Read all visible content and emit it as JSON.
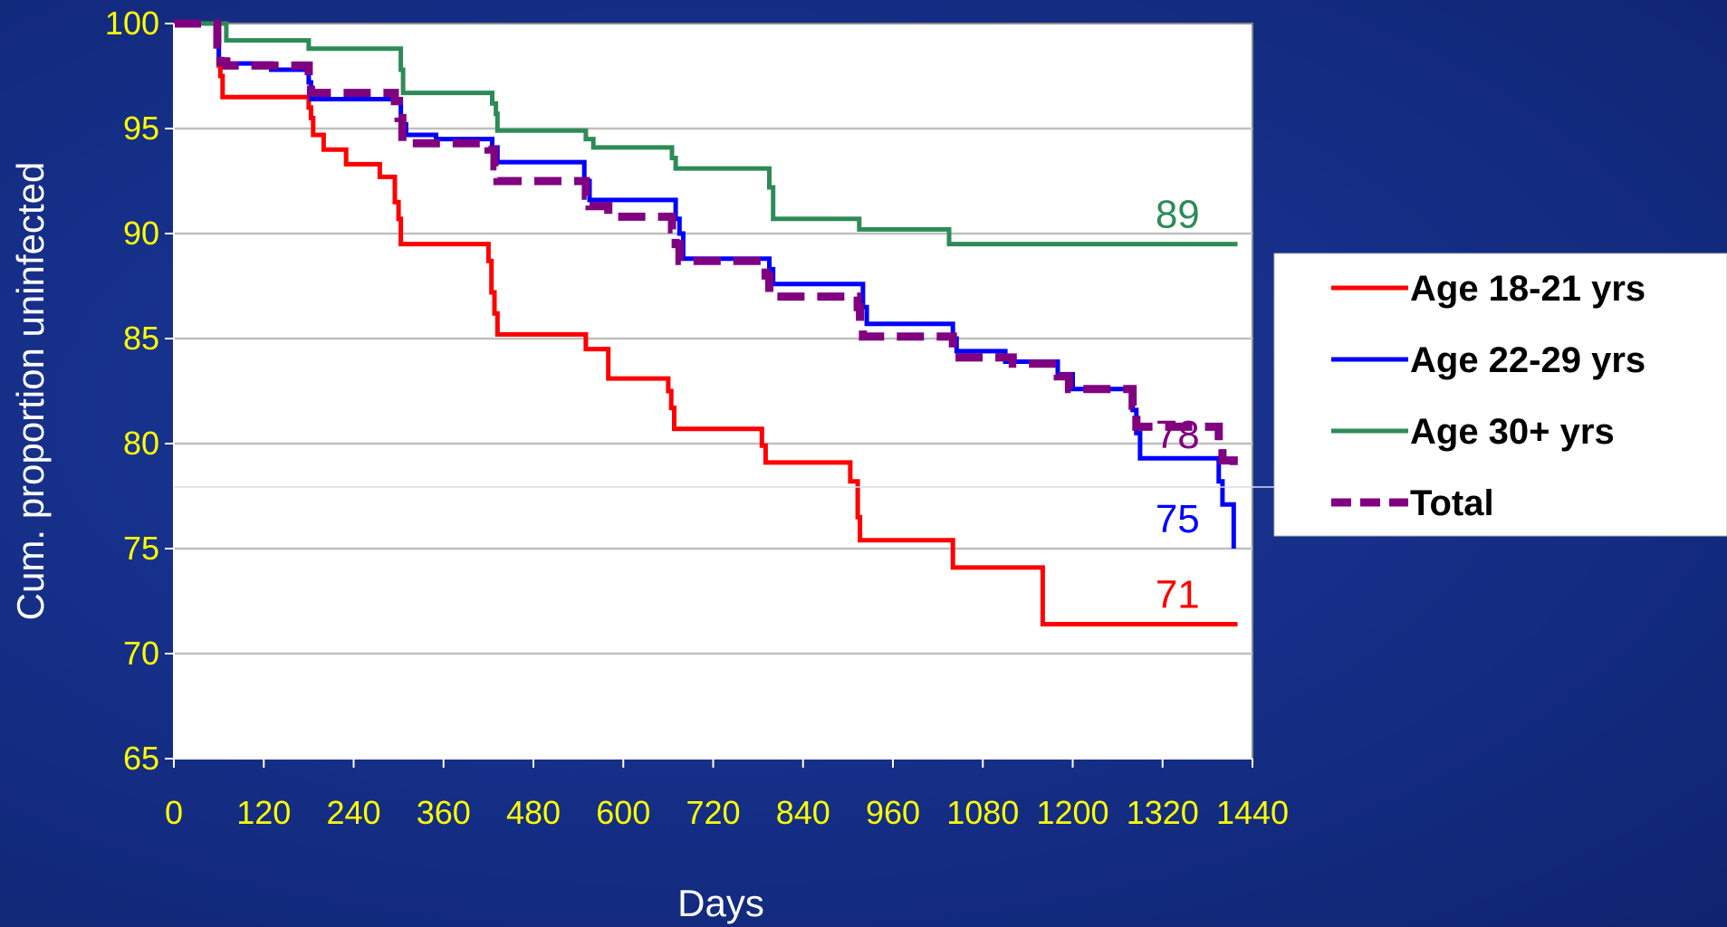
{
  "chart_data": {
    "type": "line",
    "title": "",
    "xlabel": "Days",
    "ylabel": "Cum. proportion uninfected",
    "xlim": [
      0,
      1440
    ],
    "ylim": [
      65,
      100
    ],
    "x_ticks": [
      0,
      120,
      240,
      360,
      480,
      600,
      720,
      840,
      960,
      1080,
      1200,
      1320,
      1440
    ],
    "x_tick_labels": [
      "0",
      "120",
      "240",
      "360",
      "480",
      "600",
      "720",
      "840",
      "960",
      "1080",
      "1200",
      "1320",
      "1440"
    ],
    "y_ticks": [
      65,
      70,
      75,
      80,
      85,
      90,
      95,
      100
    ],
    "y_tick_labels": [
      "65",
      "70",
      "75",
      "80",
      "85",
      "90",
      "95",
      "100"
    ],
    "grid": true,
    "legend_position": "right",
    "series": [
      {
        "name": "Age 18-21 yrs",
        "color": "#ff0000",
        "style": "solid",
        "end_label": "71",
        "points": [
          [
            0,
            100
          ],
          [
            58,
            100
          ],
          [
            58,
            99
          ],
          [
            60,
            99
          ],
          [
            60,
            98
          ],
          [
            62,
            98
          ],
          [
            62,
            97.5
          ],
          [
            65,
            97.5
          ],
          [
            65,
            96.5
          ],
          [
            180,
            96.5
          ],
          [
            180,
            96
          ],
          [
            183,
            96
          ],
          [
            183,
            95.5
          ],
          [
            186,
            95.5
          ],
          [
            186,
            94.7
          ],
          [
            200,
            94.7
          ],
          [
            200,
            94
          ],
          [
            230,
            94
          ],
          [
            230,
            93.3
          ],
          [
            275,
            93.3
          ],
          [
            275,
            92.7
          ],
          [
            295,
            92.7
          ],
          [
            295,
            91.5
          ],
          [
            300,
            91.5
          ],
          [
            300,
            90.7
          ],
          [
            303,
            90.7
          ],
          [
            303,
            89.5
          ],
          [
            420,
            89.5
          ],
          [
            420,
            88.7
          ],
          [
            424,
            88.7
          ],
          [
            424,
            87.2
          ],
          [
            428,
            87.2
          ],
          [
            428,
            86.2
          ],
          [
            432,
            86.2
          ],
          [
            432,
            85.2
          ],
          [
            550,
            85.2
          ],
          [
            550,
            84.5
          ],
          [
            580,
            84.5
          ],
          [
            580,
            83.1
          ],
          [
            660,
            83.1
          ],
          [
            660,
            82.5
          ],
          [
            664,
            82.5
          ],
          [
            664,
            81.7
          ],
          [
            668,
            81.7
          ],
          [
            668,
            80.7
          ],
          [
            785,
            80.7
          ],
          [
            785,
            79.9
          ],
          [
            790,
            79.9
          ],
          [
            790,
            79.1
          ],
          [
            903,
            79.1
          ],
          [
            903,
            78.2
          ],
          [
            913,
            78.2
          ],
          [
            913,
            76.5
          ],
          [
            916,
            76.5
          ],
          [
            916,
            75.4
          ],
          [
            1040,
            75.4
          ],
          [
            1040,
            74.1
          ],
          [
            1160,
            74.1
          ],
          [
            1160,
            71.4
          ],
          [
            1420,
            71.4
          ]
        ]
      },
      {
        "name": "Age 22-29 yrs",
        "color": "#0000ff",
        "style": "solid",
        "end_label": "75",
        "points": [
          [
            0,
            100
          ],
          [
            58,
            100
          ],
          [
            58,
            99
          ],
          [
            60,
            99
          ],
          [
            60,
            98.1
          ],
          [
            130,
            98.1
          ],
          [
            130,
            97.8
          ],
          [
            180,
            97.8
          ],
          [
            180,
            97.2
          ],
          [
            183,
            97.2
          ],
          [
            183,
            96.4
          ],
          [
            303,
            96.4
          ],
          [
            303,
            95.2
          ],
          [
            310,
            95.2
          ],
          [
            310,
            94.7
          ],
          [
            350,
            94.7
          ],
          [
            350,
            94.5
          ],
          [
            425,
            94.5
          ],
          [
            425,
            94.1
          ],
          [
            432,
            94.1
          ],
          [
            432,
            93.4
          ],
          [
            548,
            93.4
          ],
          [
            548,
            92.5
          ],
          [
            555,
            92.5
          ],
          [
            555,
            91.6
          ],
          [
            670,
            91.6
          ],
          [
            670,
            90.7
          ],
          [
            675,
            90.7
          ],
          [
            675,
            90
          ],
          [
            680,
            90
          ],
          [
            680,
            88.8
          ],
          [
            795,
            88.8
          ],
          [
            795,
            88.3
          ],
          [
            800,
            88.3
          ],
          [
            800,
            87.6
          ],
          [
            920,
            87.6
          ],
          [
            920,
            86.5
          ],
          [
            925,
            86.5
          ],
          [
            925,
            85.7
          ],
          [
            1040,
            85.7
          ],
          [
            1040,
            85
          ],
          [
            1045,
            85
          ],
          [
            1045,
            84.4
          ],
          [
            1110,
            84.4
          ],
          [
            1110,
            83.9
          ],
          [
            1180,
            83.9
          ],
          [
            1180,
            83.3
          ],
          [
            1200,
            83.3
          ],
          [
            1200,
            82.6
          ],
          [
            1280,
            82.6
          ],
          [
            1280,
            81.6
          ],
          [
            1285,
            81.6
          ],
          [
            1285,
            80.5
          ],
          [
            1290,
            80.5
          ],
          [
            1290,
            79.3
          ],
          [
            1395,
            79.3
          ],
          [
            1395,
            78.2
          ],
          [
            1400,
            78.2
          ],
          [
            1400,
            77.1
          ],
          [
            1415,
            77.1
          ],
          [
            1415,
            75
          ]
        ]
      },
      {
        "name": "Age 30+ yrs",
        "color": "#2e8b57",
        "style": "solid",
        "end_label": "89",
        "points": [
          [
            0,
            100
          ],
          [
            70,
            100
          ],
          [
            70,
            99.2
          ],
          [
            180,
            99.2
          ],
          [
            180,
            98.8
          ],
          [
            303,
            98.8
          ],
          [
            303,
            97.8
          ],
          [
            306,
            97.8
          ],
          [
            306,
            96.7
          ],
          [
            425,
            96.7
          ],
          [
            425,
            96.2
          ],
          [
            430,
            96.2
          ],
          [
            430,
            95.7
          ],
          [
            432,
            95.7
          ],
          [
            432,
            94.9
          ],
          [
            550,
            94.9
          ],
          [
            550,
            94.5
          ],
          [
            560,
            94.5
          ],
          [
            560,
            94.1
          ],
          [
            665,
            94.1
          ],
          [
            665,
            93.6
          ],
          [
            670,
            93.6
          ],
          [
            670,
            93.1
          ],
          [
            795,
            93.1
          ],
          [
            795,
            92.2
          ],
          [
            800,
            92.2
          ],
          [
            800,
            90.7
          ],
          [
            915,
            90.7
          ],
          [
            915,
            90.2
          ],
          [
            1035,
            90.2
          ],
          [
            1035,
            89.5
          ],
          [
            1420,
            89.5
          ]
        ]
      },
      {
        "name": "Total",
        "color": "#800080",
        "style": "dashed",
        "end_label": "78",
        "points": [
          [
            0,
            100
          ],
          [
            58,
            100
          ],
          [
            58,
            99
          ],
          [
            62,
            99
          ],
          [
            62,
            98.2
          ],
          [
            70,
            98.2
          ],
          [
            70,
            98
          ],
          [
            180,
            98
          ],
          [
            180,
            97.4
          ],
          [
            183,
            97.4
          ],
          [
            183,
            96.7
          ],
          [
            295,
            96.7
          ],
          [
            295,
            96.3
          ],
          [
            300,
            96.3
          ],
          [
            300,
            95.5
          ],
          [
            305,
            95.5
          ],
          [
            305,
            94.3
          ],
          [
            420,
            94.3
          ],
          [
            420,
            94
          ],
          [
            428,
            94
          ],
          [
            428,
            93.2
          ],
          [
            432,
            93.2
          ],
          [
            432,
            92.5
          ],
          [
            550,
            92.5
          ],
          [
            550,
            91.8
          ],
          [
            555,
            91.8
          ],
          [
            555,
            91.3
          ],
          [
            580,
            91.3
          ],
          [
            580,
            90.8
          ],
          [
            665,
            90.8
          ],
          [
            665,
            90.2
          ],
          [
            670,
            90.2
          ],
          [
            670,
            89.5
          ],
          [
            675,
            89.5
          ],
          [
            675,
            88.7
          ],
          [
            790,
            88.7
          ],
          [
            790,
            88
          ],
          [
            795,
            88
          ],
          [
            795,
            87
          ],
          [
            913,
            87
          ],
          [
            913,
            86.5
          ],
          [
            916,
            86.5
          ],
          [
            916,
            85.8
          ],
          [
            920,
            85.8
          ],
          [
            920,
            85.1
          ],
          [
            1040,
            85.1
          ],
          [
            1040,
            84.1
          ],
          [
            1120,
            84.1
          ],
          [
            1120,
            83.8
          ],
          [
            1180,
            83.8
          ],
          [
            1180,
            83.2
          ],
          [
            1195,
            83.2
          ],
          [
            1195,
            82.6
          ],
          [
            1280,
            82.6
          ],
          [
            1280,
            81.8
          ],
          [
            1285,
            81.8
          ],
          [
            1285,
            80.8
          ],
          [
            1395,
            80.8
          ],
          [
            1395,
            80
          ],
          [
            1400,
            80
          ],
          [
            1400,
            79.2
          ],
          [
            1415,
            79.2
          ],
          [
            1415,
            78.4
          ]
        ]
      }
    ]
  }
}
